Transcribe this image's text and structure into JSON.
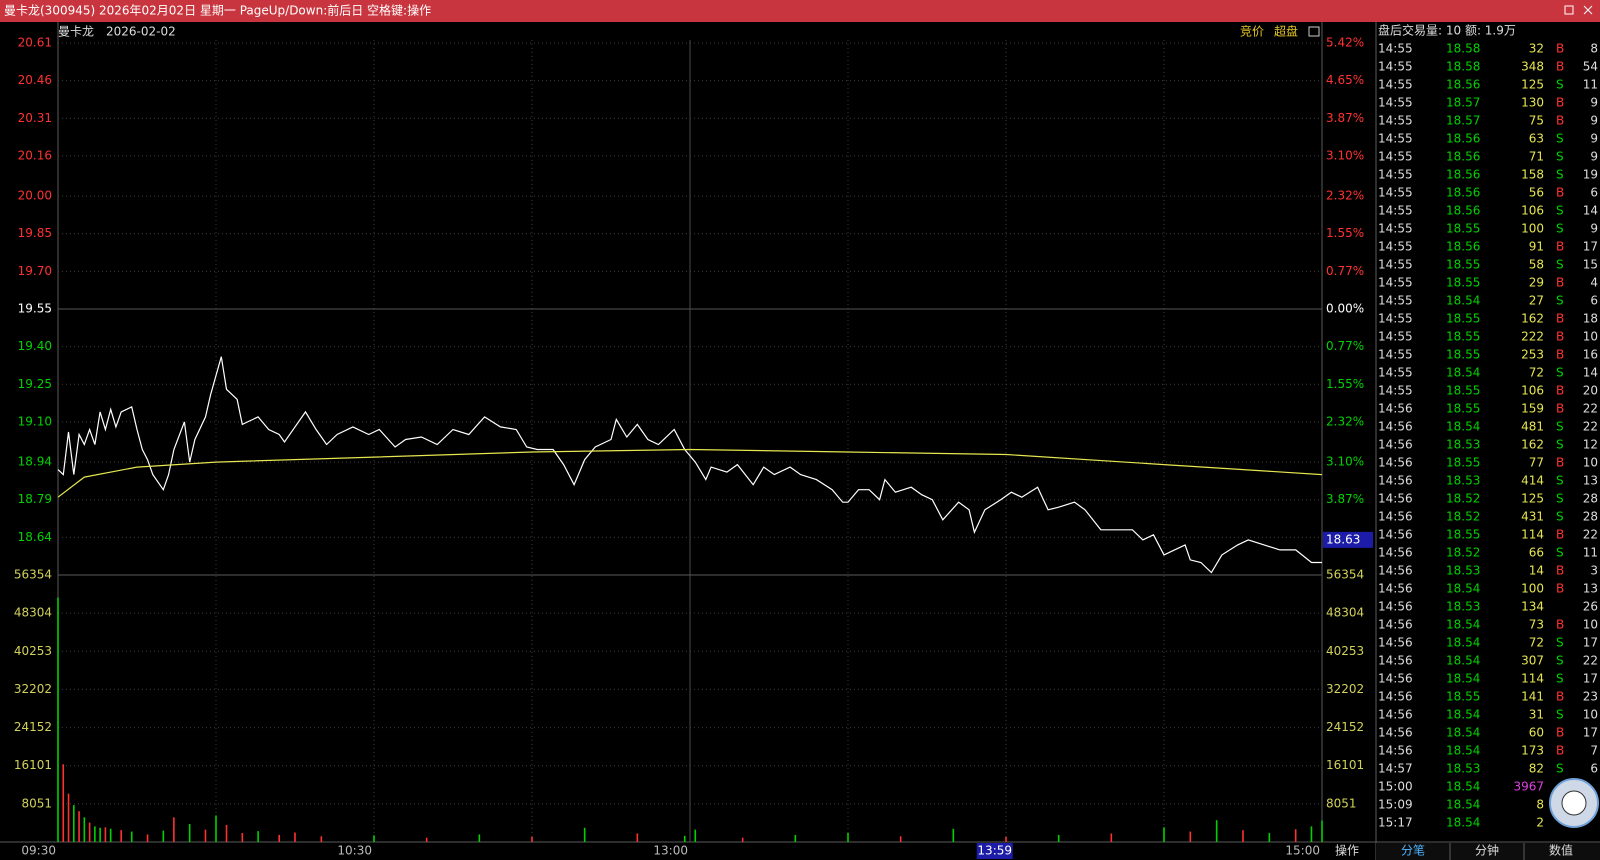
{
  "window": {
    "title": "曼卡龙(300945) 2026年02月02日 星期一 PageUp/Down:前后日 空格键:操作"
  },
  "toolbar": {
    "buttons": [
      "竞价",
      "超盘"
    ]
  },
  "chart_data": [
    {
      "type": "line",
      "title": "曼卡龙",
      "subtitle": "2026-02-02",
      "ylim": [
        18.49,
        20.61
      ],
      "yticks": [
        20.61,
        20.46,
        20.31,
        20.16,
        {
          "value": 20,
          "label": "20.00"
        },
        19.85,
        {
          "value": 19.7,
          "label": "19.70"
        },
        19.55,
        {
          "value": 19.4,
          "label": "19.40"
        },
        19.25,
        {
          "value": 19.1,
          "label": "19.10"
        },
        18.94,
        18.79,
        18.64
      ],
      "pct_labels": [
        "5.42%",
        "4.65%",
        "3.87%",
        "3.10%",
        "2.32%",
        "1.55%",
        "0.77%",
        "0.00%",
        "0.77%",
        "1.55%",
        "2.32%",
        "3.10%",
        "3.87%",
        "4.65%"
      ],
      "ref_price": 19.55,
      "up_color": "#ff3232",
      "down_color": "#00d200",
      "flat_color": "#ffffff",
      "xticks": [
        "09:30",
        "10:30",
        "13:00",
        "15:00"
      ],
      "xgrid": [
        "10:00",
        "10:30",
        "11:00",
        "13:00",
        "13:30",
        "14:00",
        "14:30"
      ],
      "cursor": {
        "time": "13:59",
        "price": 18.63
      },
      "series": [
        {
          "color": "#ffffff",
          "x": [
            "09:30",
            "09:31",
            "09:32",
            "09:33",
            "09:34",
            "09:35",
            "09:36",
            "09:37",
            "09:38",
            "09:39",
            "09:40",
            "09:41",
            "09:42",
            "09:44",
            "09:45",
            "09:46",
            "09:47",
            "09:48",
            "09:50",
            "09:51",
            "09:52",
            "09:54",
            "09:55",
            "09:56",
            "09:58",
            "09:59",
            "10:01",
            "10:02",
            "10:04",
            "10:05",
            "10:08",
            "10:10",
            "10:12",
            "10:13",
            "10:17",
            "10:19",
            "10:21",
            "10:23",
            "10:26",
            "10:29",
            "10:31",
            "10:34",
            "10:36",
            "10:39",
            "10:42",
            "10:45",
            "10:48",
            "10:51",
            "10:54",
            "10:57",
            "10:59",
            "11:01",
            "11:04",
            "11:06",
            "11:08",
            "11:10",
            "11:12",
            "11:15",
            "11:16",
            "11:18",
            "11:20",
            "11:22",
            "11:24",
            "11:27",
            "11:29",
            "13:01",
            "13:03",
            "13:04",
            "13:07",
            "13:09",
            "13:12",
            "13:14",
            "13:16",
            "13:19",
            "13:21",
            "13:24",
            "13:27",
            "13:29",
            "13:30",
            "13:32",
            "13:34",
            "13:36",
            "13:37",
            "13:39",
            "13:42",
            "13:44",
            "13:46",
            "13:48",
            "13:51",
            "13:53",
            "13:54",
            "13:56",
            "13:59",
            "14:01",
            "14:03",
            "14:06",
            "14:08",
            "14:10",
            "14:13",
            "14:15",
            "14:18",
            "14:20",
            "14:24",
            "14:26",
            "14:28",
            "14:30",
            "14:32",
            "14:34",
            "14:35",
            "14:37",
            "14:39",
            "14:41",
            "14:44",
            "14:46",
            "14:49",
            "14:52",
            "14:55",
            "14:58",
            "15:00"
          ],
          "values": [
            18.91,
            18.89,
            19.06,
            18.89,
            19.05,
            19.01,
            19.07,
            19.01,
            19.14,
            19.07,
            19.15,
            19.08,
            19.14,
            19.16,
            19.07,
            18.99,
            18.95,
            18.89,
            18.83,
            18.89,
            18.99,
            19.1,
            18.94,
            19.03,
            19.12,
            19.21,
            19.36,
            19.23,
            19.19,
            19.09,
            19.12,
            19.07,
            19.05,
            19.02,
            19.14,
            19.07,
            19.01,
            19.05,
            19.08,
            19.05,
            19.07,
            19.0,
            19.03,
            19.04,
            19.01,
            19.07,
            19.05,
            19.12,
            19.08,
            19.07,
            19.0,
            18.99,
            18.99,
            18.93,
            18.85,
            18.95,
            19.0,
            19.03,
            19.11,
            19.04,
            19.09,
            19.03,
            19.01,
            19.07,
            18.99,
            18.94,
            18.87,
            18.92,
            18.9,
            18.93,
            18.85,
            18.92,
            18.89,
            18.92,
            18.89,
            18.87,
            18.83,
            18.78,
            18.78,
            18.83,
            18.83,
            18.79,
            18.87,
            18.82,
            18.84,
            18.81,
            18.79,
            18.71,
            18.78,
            18.75,
            18.66,
            18.75,
            18.79,
            18.82,
            18.8,
            18.84,
            18.75,
            18.76,
            18.78,
            18.75,
            18.67,
            18.67,
            18.67,
            18.63,
            18.65,
            18.57,
            18.59,
            18.61,
            18.55,
            18.54,
            18.5,
            18.57,
            18.61,
            18.63,
            18.61,
            18.59,
            18.59,
            18.54,
            18.54
          ]
        },
        {
          "color": "#e6e650",
          "x": [
            "09:30",
            "09:35",
            "09:45",
            "10:00",
            "10:30",
            "11:00",
            "11:30",
            "13:30",
            "14:00",
            "14:30",
            "15:00"
          ],
          "values": [
            18.8,
            18.88,
            18.92,
            18.94,
            18.96,
            18.98,
            18.99,
            18.98,
            18.97,
            18.93,
            18.89
          ]
        }
      ]
    },
    {
      "type": "bar",
      "ylim": [
        0,
        56354
      ],
      "yticks": [
        56354,
        48304,
        40253,
        32202,
        24152,
        16101,
        8051
      ],
      "x": [
        "09:30",
        "09:31",
        "09:32",
        "09:33",
        "09:34",
        "09:35",
        "09:36",
        "09:37",
        "09:38",
        "09:39",
        "09:40",
        "09:42",
        "09:44",
        "09:47",
        "09:50",
        "09:52",
        "09:55",
        "09:58",
        "10:00",
        "10:02",
        "10:05",
        "10:08",
        "10:12",
        "10:15",
        "10:20",
        "10:30",
        "10:40",
        "10:50",
        "11:00",
        "11:10",
        "11:20",
        "11:29",
        "13:01",
        "13:10",
        "13:20",
        "13:30",
        "13:40",
        "13:50",
        "14:00",
        "14:10",
        "14:20",
        "14:30",
        "14:35",
        "14:40",
        "14:45",
        "14:50",
        "14:55",
        "14:58",
        "15:00"
      ],
      "values": [
        51600,
        16400,
        10200,
        7800,
        6500,
        5200,
        4100,
        3300,
        3000,
        3100,
        2800,
        2500,
        2200,
        1600,
        2400,
        5200,
        3800,
        2600,
        5600,
        3600,
        1900,
        2300,
        1500,
        2000,
        1200,
        1400,
        900,
        1600,
        1100,
        3000,
        1800,
        1300,
        2600,
        900,
        1500,
        1900,
        1200,
        2800,
        1100,
        1500,
        1800,
        3100,
        2200,
        4600,
        2500,
        1900,
        2700,
        3300,
        4500
      ],
      "colors": [
        "#00d200",
        "#ff3232",
        "#ff3232",
        "#00d200",
        "#ff3232",
        "#00d200",
        "#ff3232",
        "#00d200",
        "#00d200",
        "#ff3232",
        "#00d200",
        "#ff3232",
        "#00d200",
        "#ff3232",
        "#00d200",
        "#ff3232",
        "#00d200",
        "#ff3232",
        "#00d200",
        "#ff3232",
        "#ff3232",
        "#00d200",
        "#ff3232",
        "#ff3232",
        "#ff3232",
        "#00d200",
        "#ff3232",
        "#00d200",
        "#ff3232",
        "#00d200",
        "#ff3232",
        "#00d200",
        "#00d200",
        "#ff3232",
        "#00d200",
        "#00d200",
        "#ff3232",
        "#00d200",
        "#ff3232",
        "#00d200",
        "#ff3232",
        "#00d200",
        "#ff3232",
        "#00d200",
        "#ff3232",
        "#00d200",
        "#ff3232",
        "#00d200",
        "#00d200"
      ],
      "label_color": "#d2d25a"
    }
  ],
  "trades": {
    "header": "盘后交易量: 10  额: 1.9万",
    "rows": [
      [
        "14:55",
        18.58,
        32,
        "B",
        8
      ],
      [
        "14:55",
        18.58,
        348,
        "B",
        54
      ],
      [
        "14:55",
        18.56,
        125,
        "S",
        11
      ],
      [
        "14:55",
        18.57,
        130,
        "B",
        9
      ],
      [
        "14:55",
        18.57,
        75,
        "B",
        9
      ],
      [
        "14:55",
        18.56,
        63,
        "S",
        9
      ],
      [
        "14:55",
        18.56,
        71,
        "S",
        9
      ],
      [
        "14:55",
        18.56,
        158,
        "S",
        19
      ],
      [
        "14:55",
        18.56,
        56,
        "B",
        6
      ],
      [
        "14:55",
        18.56,
        106,
        "S",
        14
      ],
      [
        "14:55",
        18.55,
        100,
        "S",
        9
      ],
      [
        "14:55",
        18.56,
        91,
        "B",
        17
      ],
      [
        "14:55",
        18.55,
        58,
        "S",
        15
      ],
      [
        "14:55",
        18.55,
        29,
        "B",
        4
      ],
      [
        "14:55",
        18.54,
        27,
        "S",
        6
      ],
      [
        "14:55",
        18.55,
        162,
        "B",
        18
      ],
      [
        "14:55",
        18.55,
        222,
        "B",
        10
      ],
      [
        "14:55",
        18.55,
        253,
        "B",
        16
      ],
      [
        "14:55",
        18.54,
        72,
        "S",
        14
      ],
      [
        "14:55",
        18.55,
        106,
        "B",
        20
      ],
      [
        "14:56",
        18.55,
        159,
        "B",
        22
      ],
      [
        "14:56",
        18.54,
        481,
        "S",
        22
      ],
      [
        "14:56",
        18.53,
        162,
        "S",
        12
      ],
      [
        "14:56",
        18.55,
        77,
        "B",
        10
      ],
      [
        "14:56",
        18.53,
        414,
        "S",
        13
      ],
      [
        "14:56",
        18.52,
        125,
        "S",
        28
      ],
      [
        "14:56",
        18.52,
        431,
        "S",
        28
      ],
      [
        "14:56",
        18.55,
        114,
        "B",
        22
      ],
      [
        "14:56",
        18.52,
        66,
        "S",
        11
      ],
      [
        "14:56",
        18.53,
        14,
        "B",
        3
      ],
      [
        "14:56",
        18.54,
        100,
        "B",
        13
      ],
      [
        "14:56",
        18.53,
        134,
        null,
        26
      ],
      [
        "14:56",
        18.54,
        73,
        "B",
        10
      ],
      [
        "14:56",
        18.54,
        72,
        "S",
        17
      ],
      [
        "14:56",
        18.54,
        307,
        "S",
        22
      ],
      [
        "14:56",
        18.54,
        114,
        "S",
        17
      ],
      [
        "14:56",
        18.55,
        141,
        "B",
        23
      ],
      [
        "14:56",
        18.54,
        31,
        "S",
        10
      ],
      [
        "14:56",
        18.54,
        60,
        "B",
        17
      ],
      [
        "14:56",
        18.54,
        173,
        "B",
        7
      ],
      [
        "14:57",
        18.53,
        82,
        "S",
        6
      ],
      [
        "15:00",
        18.54,
        3967,
        null,
        null
      ],
      [
        "15:09",
        18.54,
        8,
        null,
        null
      ],
      [
        "15:17",
        18.54,
        2,
        null,
        null
      ]
    ]
  },
  "tabs": {
    "chart_tab": "操作",
    "panel_tabs": [
      "分笔",
      "分钟",
      "数值"
    ]
  }
}
